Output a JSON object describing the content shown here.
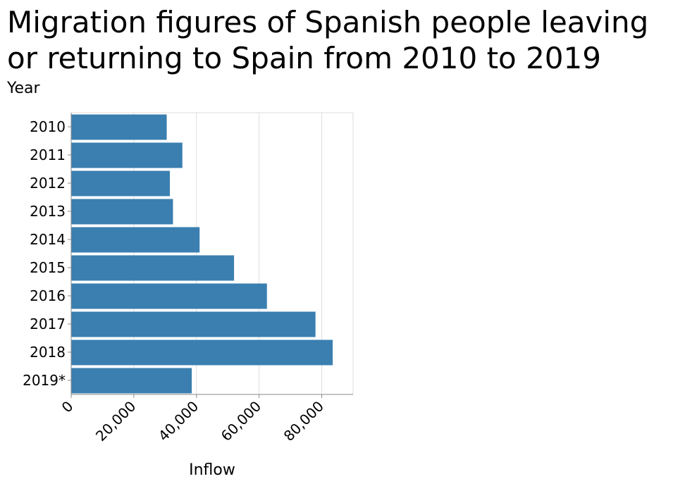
{
  "chart_data": {
    "type": "bar",
    "orientation": "horizontal",
    "title_lines": [
      "Migration figures of Spanish people leaving",
      "or returning to Spain from 2010 to 2019"
    ],
    "xlabel": "Inflow",
    "ylabel": "Year",
    "categories": [
      "2010",
      "2011",
      "2012",
      "2013",
      "2014",
      "2015",
      "2016",
      "2017",
      "2018",
      "2019*"
    ],
    "values": [
      30500,
      35500,
      31500,
      32500,
      41000,
      52000,
      62500,
      78000,
      83500,
      38500
    ],
    "xlim": [
      0,
      90000
    ],
    "xticks": [
      0,
      20000,
      40000,
      60000,
      80000
    ],
    "xtick_labels": [
      "0",
      "20,000",
      "40,000",
      "60,000",
      "80,000"
    ],
    "grid": "vertical",
    "bar_color": "#3a7fb0"
  }
}
